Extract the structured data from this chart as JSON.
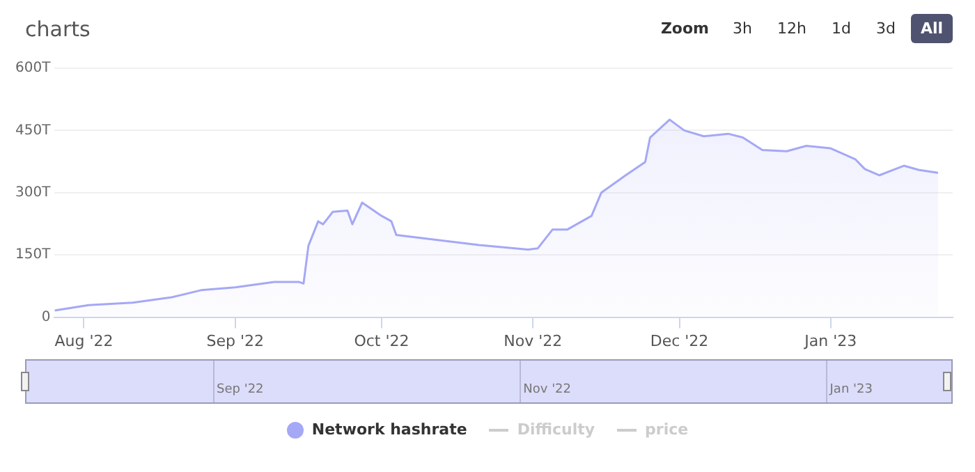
{
  "chart_data": {
    "type": "area",
    "title": "charts",
    "x": [
      "2022-07-26",
      "2022-08-02",
      "2022-08-11",
      "2022-08-19",
      "2022-08-25",
      "2022-09-01",
      "2022-09-09",
      "2022-09-14",
      "2022-09-15",
      "2022-09-16",
      "2022-09-18",
      "2022-09-19",
      "2022-09-21",
      "2022-09-24",
      "2022-09-25",
      "2022-09-27",
      "2022-10-01",
      "2022-10-03",
      "2022-10-04",
      "2022-10-11",
      "2022-10-21",
      "2022-10-31",
      "2022-11-02",
      "2022-11-05",
      "2022-11-08",
      "2022-11-13",
      "2022-11-15",
      "2022-11-20",
      "2022-11-24",
      "2022-11-25",
      "2022-11-29",
      "2022-12-02",
      "2022-12-06",
      "2022-12-11",
      "2022-12-14",
      "2022-12-18",
      "2022-12-23",
      "2022-12-27",
      "2023-01-01",
      "2023-01-06",
      "2023-01-08",
      "2023-01-11",
      "2023-01-16",
      "2023-01-19",
      "2023-01-23"
    ],
    "series": [
      {
        "name": "Network hashrate",
        "color": "#a5a8f5",
        "values": [
          16,
          29,
          35,
          48,
          65,
          72,
          85,
          85,
          81,
          172,
          231,
          224,
          254,
          257,
          224,
          276,
          244,
          231,
          198,
          188,
          174,
          163,
          166,
          211,
          211,
          244,
          300,
          342,
          374,
          433,
          476,
          450,
          436,
          442,
          433,
          403,
          400,
          413,
          407,
          381,
          357,
          342,
          365,
          355,
          348
        ]
      },
      {
        "name": "Difficulty",
        "color": "#cccccc",
        "type": "line",
        "values": [
          null,
          null,
          null,
          null,
          null,
          null,
          null,
          null,
          null,
          null,
          null,
          null,
          null,
          null,
          null,
          null,
          null,
          null,
          null,
          null,
          null,
          null,
          null,
          null,
          null,
          null,
          null,
          null,
          null,
          null,
          null,
          null,
          null,
          null,
          null,
          null,
          null,
          null,
          null,
          null,
          null,
          null,
          null,
          null,
          null
        ]
      },
      {
        "name": "price",
        "color": "#cccccc",
        "type": "line",
        "values": [
          null,
          null,
          null,
          null,
          null,
          null,
          null,
          null,
          null,
          null,
          null,
          null,
          null,
          null,
          null,
          null,
          null,
          null,
          null,
          null,
          null,
          null,
          null,
          null,
          null,
          null,
          null,
          null,
          null,
          null,
          null,
          null,
          null,
          null,
          null,
          null,
          null,
          null,
          null,
          null,
          null,
          null,
          null,
          null,
          null
        ]
      }
    ],
    "xlim": [
      "2022-07-26",
      "2023-01-26"
    ],
    "xticks": [
      {
        "value": "2022-08-01",
        "label": "Aug '22"
      },
      {
        "value": "2022-09-01",
        "label": "Sep '22"
      },
      {
        "value": "2022-10-01",
        "label": "Oct '22"
      },
      {
        "value": "2022-11-01",
        "label": "Nov '22"
      },
      {
        "value": "2022-12-01",
        "label": "Dec '22"
      },
      {
        "value": "2023-01-01",
        "label": "Jan '23"
      }
    ],
    "ylim": [
      0,
      600
    ],
    "yticks": [
      {
        "value": 0,
        "label": "0"
      },
      {
        "value": 150,
        "label": "150T"
      },
      {
        "value": 300,
        "label": "300T"
      },
      {
        "value": 450,
        "label": "450T"
      },
      {
        "value": 600,
        "label": "600T"
      }
    ],
    "grid": "y",
    "legend": "bottom",
    "annotations": [
      "Zoom",
      "3h",
      "12h",
      "1d",
      "3d",
      "All",
      "Sep '22",
      "Nov '22",
      "Jan '23"
    ]
  }
}
